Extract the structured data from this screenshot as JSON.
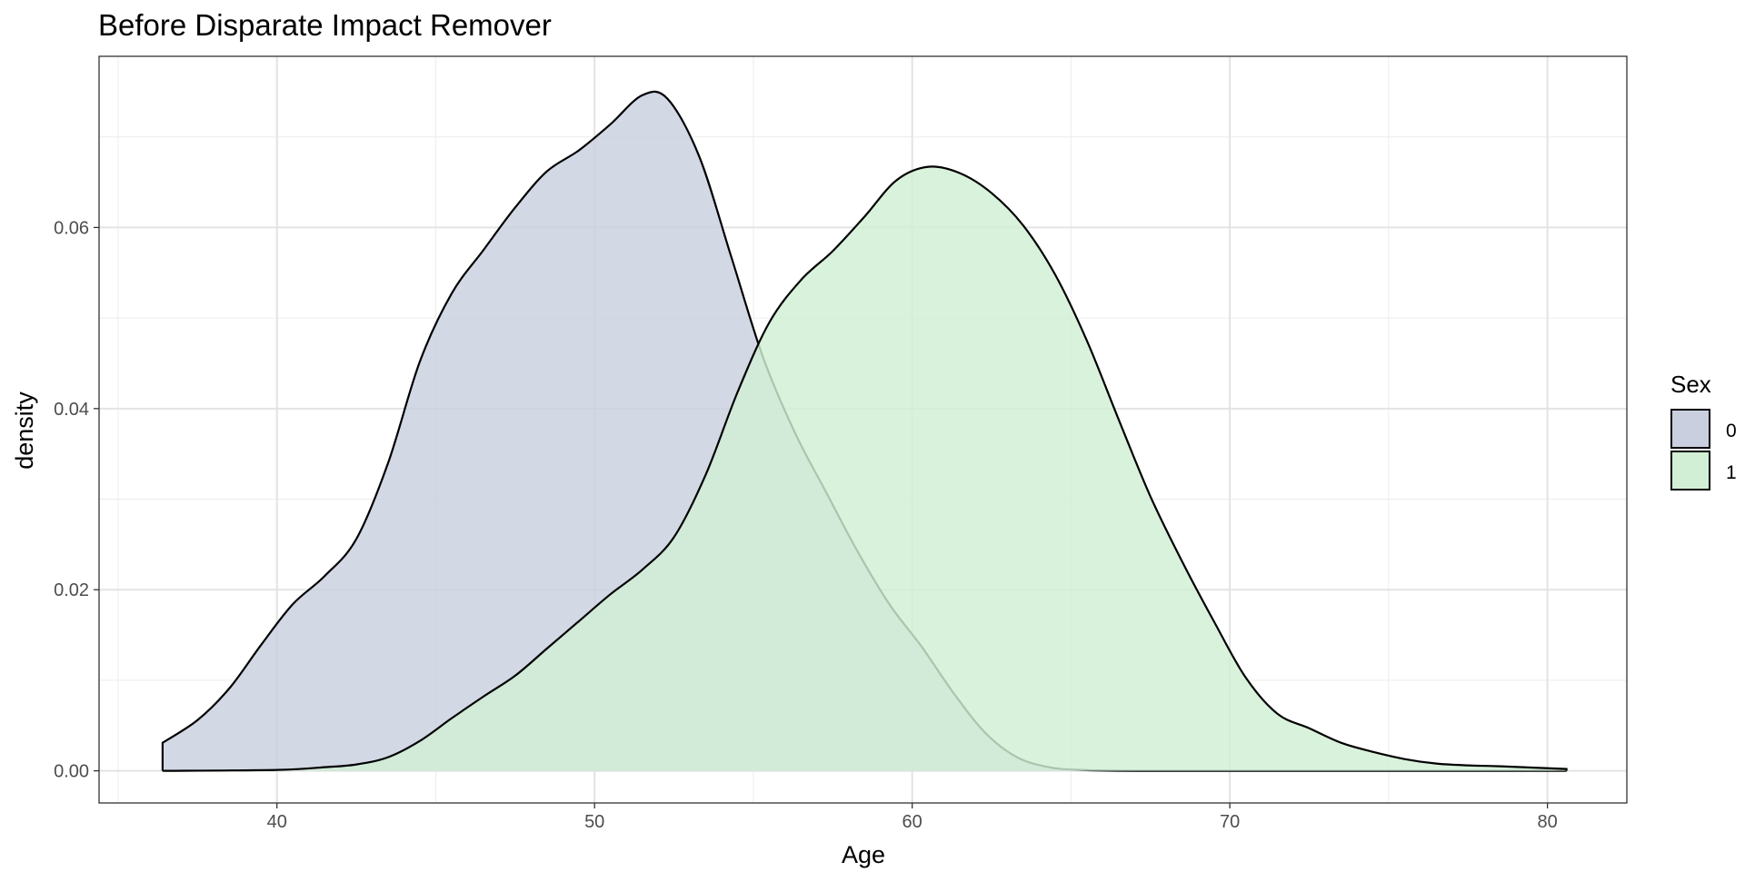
{
  "chart_data": {
    "type": "area",
    "title": "Before Disparate Impact Remover",
    "xlabel": "Age",
    "ylabel": "density",
    "xlim": [
      34.4,
      82.5
    ],
    "ylim": [
      -0.00355,
      0.0789
    ],
    "x_ticks": [
      40,
      50,
      60,
      70,
      80
    ],
    "x_tick_labels": [
      "40",
      "50",
      "60",
      "70",
      "80"
    ],
    "y_ticks": [
      0.0,
      0.02,
      0.04,
      0.06
    ],
    "y_tick_labels": [
      "0.00",
      "0.02",
      "0.04",
      "0.06"
    ],
    "grid": true,
    "legend": {
      "title": "Sex",
      "position": "right"
    },
    "series": [
      {
        "name": "0",
        "color": "#c9cfdf",
        "points": [
          [
            36.4,
            0.0031
          ],
          [
            37.5,
            0.0056
          ],
          [
            38.5,
            0.0091
          ],
          [
            39.5,
            0.0139
          ],
          [
            40.5,
            0.0184
          ],
          [
            41.5,
            0.0215
          ],
          [
            42.5,
            0.0256
          ],
          [
            43.5,
            0.034
          ],
          [
            44.5,
            0.0452
          ],
          [
            45.5,
            0.0527
          ],
          [
            46.5,
            0.0575
          ],
          [
            47.5,
            0.0622
          ],
          [
            48.5,
            0.0662
          ],
          [
            49.5,
            0.0685
          ],
          [
            50.5,
            0.0714
          ],
          [
            51.5,
            0.0746
          ],
          [
            52.3,
            0.0742
          ],
          [
            53.3,
            0.0678
          ],
          [
            54.3,
            0.0568
          ],
          [
            55.3,
            0.0457
          ],
          [
            56.3,
            0.0374
          ],
          [
            57.3,
            0.0307
          ],
          [
            58.3,
            0.0241
          ],
          [
            59.3,
            0.0183
          ],
          [
            60.3,
            0.0137
          ],
          [
            61.3,
            0.0086
          ],
          [
            62.3,
            0.0042
          ],
          [
            63.3,
            0.0015
          ],
          [
            64.3,
            0.0004
          ],
          [
            65.3,
            0.0001
          ],
          [
            67,
            0.0
          ],
          [
            70,
            0.0
          ],
          [
            75,
            0.0
          ],
          [
            80.6,
            0.0
          ]
        ]
      },
      {
        "name": "1",
        "color": "#d1efd4",
        "points": [
          [
            36.4,
            0.0
          ],
          [
            40,
            0.0001
          ],
          [
            41.5,
            0.0004
          ],
          [
            42.5,
            0.0007
          ],
          [
            43.5,
            0.0015
          ],
          [
            44.5,
            0.0033
          ],
          [
            45.5,
            0.0058
          ],
          [
            46.5,
            0.0082
          ],
          [
            47.5,
            0.0105
          ],
          [
            48.5,
            0.0135
          ],
          [
            49.5,
            0.0165
          ],
          [
            50.5,
            0.0195
          ],
          [
            51.5,
            0.0222
          ],
          [
            52.5,
            0.0258
          ],
          [
            53.5,
            0.0327
          ],
          [
            54.5,
            0.0418
          ],
          [
            55.5,
            0.0495
          ],
          [
            56.5,
            0.0542
          ],
          [
            57.5,
            0.0574
          ],
          [
            58.5,
            0.0612
          ],
          [
            59.5,
            0.0652
          ],
          [
            60.5,
            0.0667
          ],
          [
            61.5,
            0.066
          ],
          [
            62.5,
            0.0638
          ],
          [
            63.5,
            0.0602
          ],
          [
            64.5,
            0.0548
          ],
          [
            65.5,
            0.0475
          ],
          [
            66.5,
            0.0388
          ],
          [
            67.5,
            0.0303
          ],
          [
            68.5,
            0.0231
          ],
          [
            69.5,
            0.0165
          ],
          [
            70.5,
            0.0103
          ],
          [
            71.5,
            0.0063
          ],
          [
            72.5,
            0.0047
          ],
          [
            73.5,
            0.0031
          ],
          [
            74.5,
            0.0021
          ],
          [
            75.5,
            0.0013
          ],
          [
            76.5,
            0.0008
          ],
          [
            77.5,
            0.0006
          ],
          [
            78.5,
            0.0005
          ],
          [
            80.6,
            0.0002
          ]
        ]
      }
    ]
  }
}
